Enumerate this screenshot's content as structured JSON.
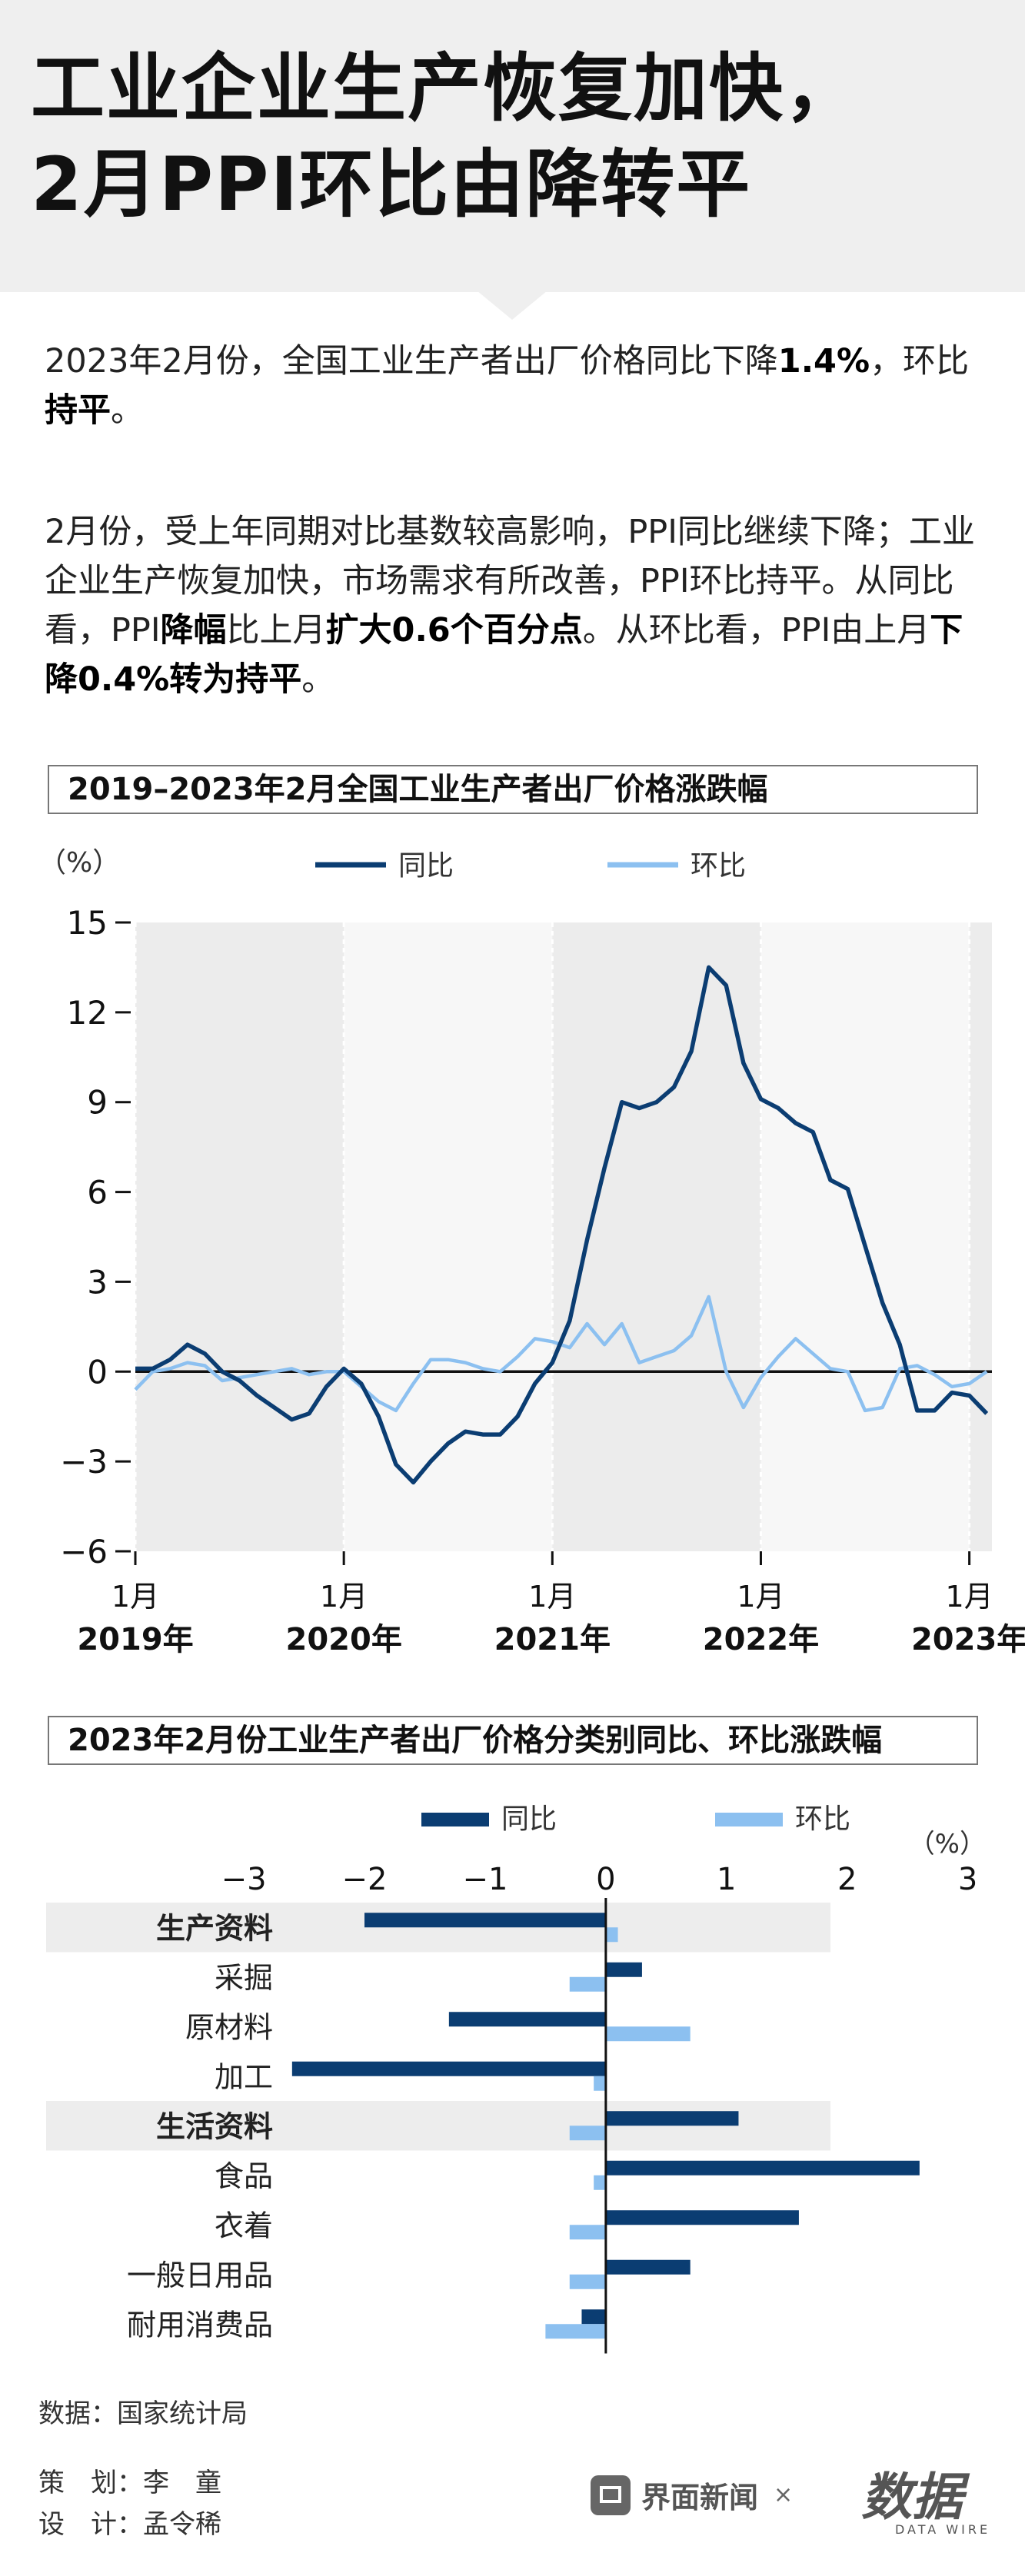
{
  "header": {
    "title_line1": "工业企业生产恢复加快，",
    "title_line2": "2月PPI环比由降转平"
  },
  "intro": {
    "p1": [
      {
        "t": "2023年2月份，全国工业生产者出厂价格同比下降",
        "b": false
      },
      {
        "t": "1.4%",
        "b": true
      },
      {
        "t": "，环比",
        "b": false
      },
      {
        "t": "持平",
        "b": true
      },
      {
        "t": "。",
        "b": false
      }
    ],
    "p2": [
      {
        "t": "2月份，受上年同期对比基数较高影响，PPI同比继续下降；工业企业生产恢复加快，市场需求有所改善，PPI环比持平。从同比看，PPI",
        "b": false
      },
      {
        "t": "降幅",
        "b": true
      },
      {
        "t": "比上月",
        "b": false
      },
      {
        "t": "扩大0.6个百分点",
        "b": true
      },
      {
        "t": "。从环比看，PPI由上月",
        "b": false
      },
      {
        "t": "下降0.4%转为持平",
        "b": true
      },
      {
        "t": "。",
        "b": false
      }
    ]
  },
  "chart_data": [
    {
      "type": "line",
      "title": "2019–2023年2月全国工业生产者出厂价格涨跌幅",
      "unit": "（%）",
      "ylim": [
        -6,
        15
      ],
      "yticks": [
        15,
        12,
        9,
        6,
        3,
        0,
        -3,
        -6
      ],
      "xticks": [
        {
          "index": 0,
          "month": "1月",
          "year": "2019年"
        },
        {
          "index": 12,
          "month": "1月",
          "year": "2020年"
        },
        {
          "index": 24,
          "month": "1月",
          "year": "2021年"
        },
        {
          "index": 36,
          "month": "1月",
          "year": "2022年"
        },
        {
          "index": 48,
          "month": "1月",
          "year": "2023年"
        }
      ],
      "x": [
        "2019-01",
        "2019-02",
        "2019-03",
        "2019-04",
        "2019-05",
        "2019-06",
        "2019-07",
        "2019-08",
        "2019-09",
        "2019-10",
        "2019-11",
        "2019-12",
        "2020-01",
        "2020-02",
        "2020-03",
        "2020-04",
        "2020-05",
        "2020-06",
        "2020-07",
        "2020-08",
        "2020-09",
        "2020-10",
        "2020-11",
        "2020-12",
        "2021-01",
        "2021-02",
        "2021-03",
        "2021-04",
        "2021-05",
        "2021-06",
        "2021-07",
        "2021-08",
        "2021-09",
        "2021-10",
        "2021-11",
        "2021-12",
        "2022-01",
        "2022-02",
        "2022-03",
        "2022-04",
        "2022-05",
        "2022-06",
        "2022-07",
        "2022-08",
        "2022-09",
        "2022-10",
        "2022-11",
        "2022-12",
        "2023-01",
        "2023-02"
      ],
      "series": [
        {
          "name": "同比",
          "color": "#0b3d72",
          "values": [
            0.1,
            0.1,
            0.4,
            0.9,
            0.6,
            0.0,
            -0.3,
            -0.8,
            -1.2,
            -1.6,
            -1.4,
            -0.5,
            0.1,
            -0.4,
            -1.5,
            -3.1,
            -3.7,
            -3.0,
            -2.4,
            -2.0,
            -2.1,
            -2.1,
            -1.5,
            -0.4,
            0.3,
            1.7,
            4.4,
            6.8,
            9.0,
            8.8,
            9.0,
            9.5,
            10.7,
            13.5,
            12.9,
            10.3,
            9.1,
            8.8,
            8.3,
            8.0,
            6.4,
            6.1,
            4.2,
            2.3,
            0.9,
            -1.3,
            -1.3,
            -0.7,
            -0.8,
            -1.4
          ]
        },
        {
          "name": "环比",
          "color": "#8cc0f0",
          "values": [
            -0.6,
            0.0,
            0.1,
            0.3,
            0.2,
            -0.3,
            -0.2,
            -0.1,
            0.0,
            0.1,
            -0.1,
            0.0,
            -0.0,
            -0.5,
            -1.0,
            -1.3,
            -0.4,
            0.4,
            0.4,
            0.3,
            0.1,
            0.0,
            0.5,
            1.1,
            1.0,
            0.8,
            1.6,
            0.9,
            1.6,
            0.3,
            0.5,
            0.7,
            1.2,
            2.5,
            0.0,
            -1.2,
            -0.2,
            0.5,
            1.1,
            0.6,
            0.1,
            0.0,
            -1.3,
            -1.2,
            0.1,
            0.2,
            -0.1,
            -0.5,
            -0.4,
            0.0
          ]
        }
      ]
    },
    {
      "type": "bar",
      "orientation": "horizontal",
      "title": "2023年2月份工业生产者出厂价格分类别同比、环比涨跌幅",
      "unit": "（%）",
      "xlim": [
        -3.3,
        3.2
      ],
      "xticks": [
        "−3",
        "−2",
        "−1",
        "0",
        "1",
        "2",
        "3"
      ],
      "xtick_values": [
        -3,
        -2,
        -1,
        0,
        1,
        2,
        3
      ],
      "categories": [
        "生产资料",
        "采掘",
        "原材料",
        "加工",
        "生活资料",
        "食品",
        "衣着",
        "一般日用品",
        "耐用消费品"
      ],
      "group_headers": [
        "生产资料",
        "生活资料"
      ],
      "series": [
        {
          "name": "同比",
          "color": "#0b3d72",
          "values": [
            -2.0,
            0.3,
            -1.3,
            -2.6,
            1.1,
            2.6,
            1.6,
            0.7,
            -0.2
          ]
        },
        {
          "name": "环比",
          "color": "#8cc0f0",
          "values": [
            0.1,
            -0.3,
            0.7,
            -0.1,
            -0.3,
            -0.1,
            -0.3,
            -0.3,
            -0.5
          ]
        }
      ]
    }
  ],
  "footer": {
    "source": "数据：国家统计局",
    "credit1": "策　划：李　童",
    "credit2": "设　计：孟令稀",
    "brand": "界面新闻",
    "x": "×",
    "logo_main": "数据",
    "logo_sub": "DATA WIRE"
  }
}
